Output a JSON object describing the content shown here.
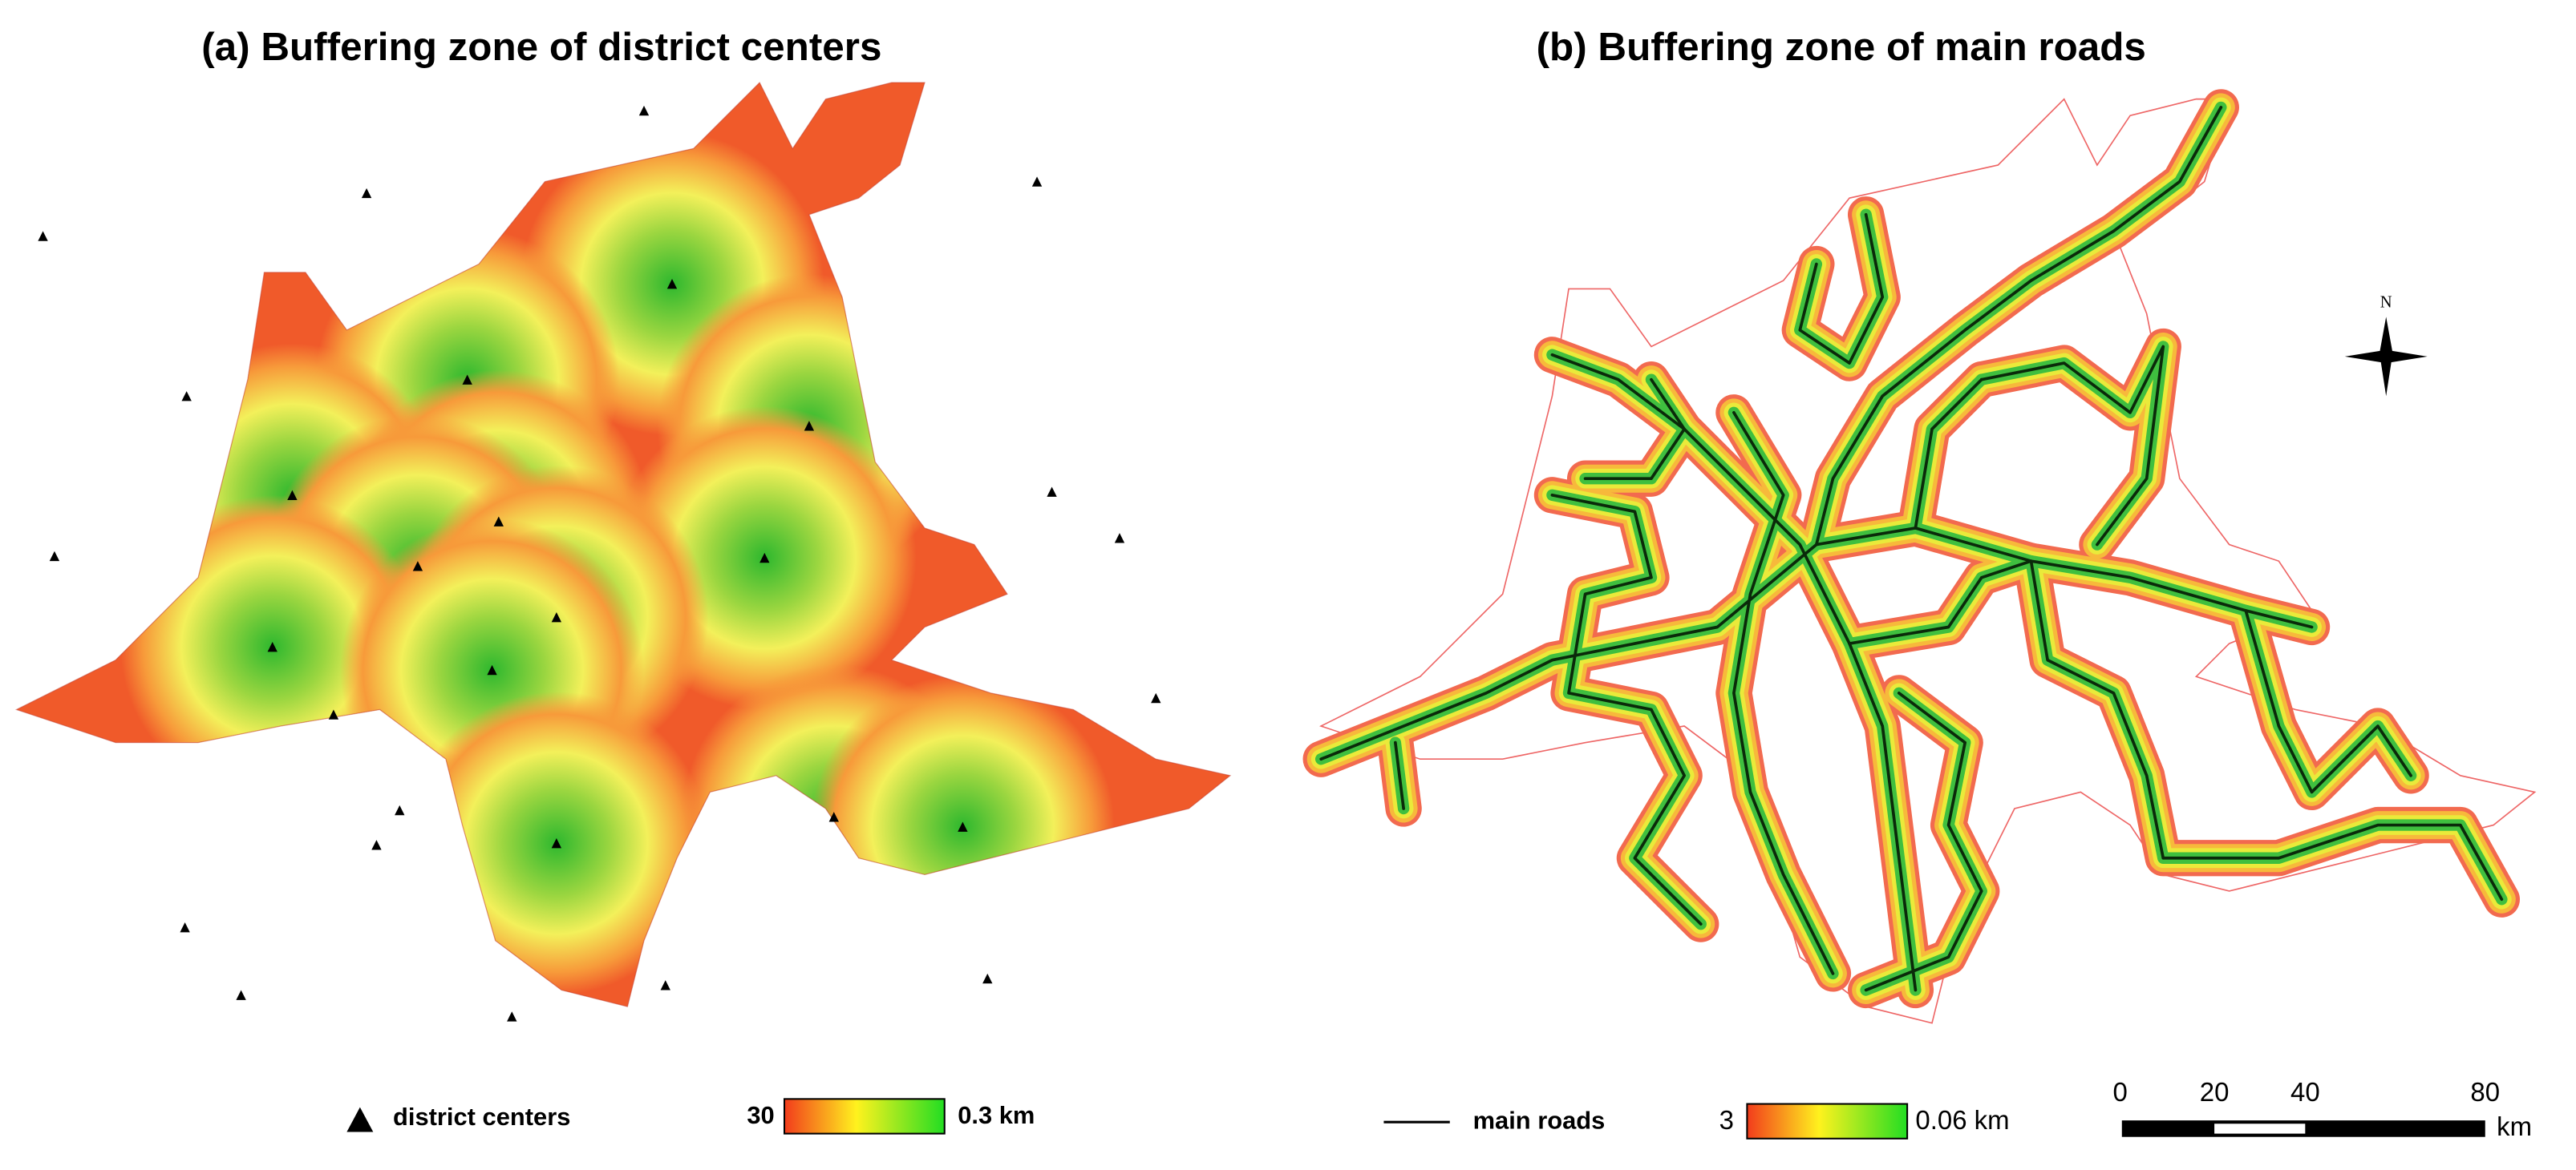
{
  "panels": [
    {
      "title": "(a) Buffering zone of district centers",
      "legend": {
        "symbol_label": "district centers",
        "scale_min": "30",
        "scale_max": "0.3 km"
      }
    },
    {
      "title": "(b) Buffering zone of main roads",
      "legend": {
        "symbol_label": "main roads",
        "scale_min": "3",
        "scale_max": "0.06 km"
      },
      "scale_bar": {
        "ticks": [
          "0",
          "20",
          "40",
          "80"
        ],
        "unit": "km"
      },
      "north_label": "N"
    }
  ]
}
